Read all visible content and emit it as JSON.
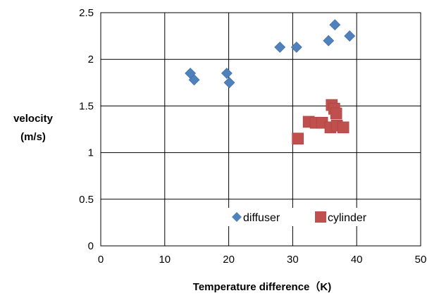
{
  "chart_data": {
    "type": "scatter",
    "xlabel": "Temperature difference（K)",
    "ylabel_lines": [
      "velocity",
      "(m/s)"
    ],
    "xlim": [
      0,
      50
    ],
    "ylim": [
      0,
      2.5
    ],
    "x_ticks": [
      "0",
      "10",
      "20",
      "30",
      "40",
      "50"
    ],
    "y_ticks": [
      "0",
      "0.5",
      "1",
      "1.5",
      "2",
      "2.5"
    ],
    "grid": true,
    "legend_position": "bottom-right inside plot",
    "series": [
      {
        "name": "diffuser",
        "marker": "diamond",
        "color": "#4F81BD",
        "points": [
          {
            "x": 14.0,
            "y": 1.85
          },
          {
            "x": 14.6,
            "y": 1.78
          },
          {
            "x": 19.7,
            "y": 1.85
          },
          {
            "x": 20.1,
            "y": 1.75
          },
          {
            "x": 28.0,
            "y": 2.13
          },
          {
            "x": 30.6,
            "y": 2.13
          },
          {
            "x": 35.6,
            "y": 2.2
          },
          {
            "x": 36.6,
            "y": 2.37
          },
          {
            "x": 38.9,
            "y": 2.25
          }
        ]
      },
      {
        "name": "cylinder",
        "marker": "square",
        "color": "#C0504D",
        "points": [
          {
            "x": 30.8,
            "y": 1.15
          },
          {
            "x": 32.5,
            "y": 1.33
          },
          {
            "x": 33.6,
            "y": 1.32
          },
          {
            "x": 34.6,
            "y": 1.32
          },
          {
            "x": 35.9,
            "y": 1.27
          },
          {
            "x": 36.1,
            "y": 1.51
          },
          {
            "x": 36.5,
            "y": 1.47
          },
          {
            "x": 36.8,
            "y": 1.42
          },
          {
            "x": 36.9,
            "y": 1.29
          },
          {
            "x": 37.9,
            "y": 1.27
          }
        ]
      }
    ]
  }
}
